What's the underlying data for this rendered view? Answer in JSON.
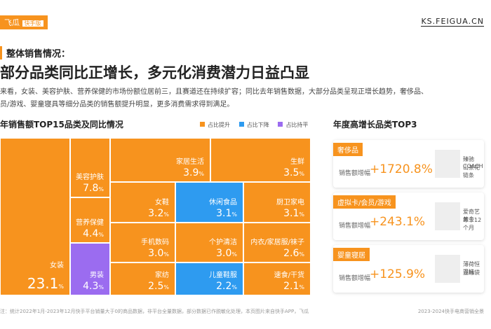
{
  "header": {
    "logo": "飞瓜",
    "badge": "快手版",
    "site": "KS.FEIGUA.CN"
  },
  "section": "整体销售情况：",
  "headline": "部分品类同比正增长，多元化消费潜力日益凸显",
  "paragraph": [
    "来看，女装、美容护肤、营养保健的市场份额位居前三，且赛道还在持续扩容；同比去年销售数据，大部分品类呈现正增长趋势，奢侈品、",
    "员/游戏、婴童寝具等细分品类的销售额提升明显，更多消费需求得到满足。"
  ],
  "treemap": {
    "title": "年销售额TOP15品类及同比情况",
    "legend": [
      "占比提升",
      "占比下降",
      "占比持平"
    ],
    "cells": [
      {
        "name": "女装",
        "value": "23.1",
        "unit": "%"
      },
      {
        "name": "美容护肤",
        "value": "7.8",
        "unit": "%"
      },
      {
        "name": "营养保健",
        "value": "4.4",
        "unit": "%"
      },
      {
        "name": "男装",
        "value": "4.3",
        "unit": "%"
      },
      {
        "name": "家居生活",
        "value": "3.9",
        "unit": "%"
      },
      {
        "name": "生鲜",
        "value": "3.5",
        "unit": "%"
      },
      {
        "name": "女鞋",
        "value": "3.2",
        "unit": "%"
      },
      {
        "name": "休闲食品",
        "value": "3.1",
        "unit": "%"
      },
      {
        "name": "厨卫家电",
        "value": "3.1",
        "unit": "%"
      },
      {
        "name": "手机数码",
        "value": "3.0",
        "unit": "%"
      },
      {
        "name": "个护清洁",
        "value": "3.0",
        "unit": "%"
      },
      {
        "name": "内衣/家居服/袜子",
        "value": "2.6",
        "unit": "%"
      },
      {
        "name": "家纺",
        "value": "2.5",
        "unit": "%"
      },
      {
        "name": "儿童鞋服",
        "value": "2.2",
        "unit": "%"
      },
      {
        "name": "速食/干货",
        "value": "2.1",
        "unit": "%"
      }
    ]
  },
  "top3": {
    "title": "年度高增长品类TOP3",
    "items": [
      {
        "tag": "奢侈品",
        "label": "销售额增幅",
        "value": "+1720.8%",
        "product": [
          "臻驰COACH",
          "山茶花链条"
        ]
      },
      {
        "tag": "虚拟卡/会员/游戏",
        "label": "销售额增幅",
        "value": "+243.1%",
        "product": [
          "爱奇艺黄金",
          "年卡12个月"
        ]
      },
      {
        "tag": "婴童寝居",
        "label": "销售额增幅",
        "value": "+125.9%",
        "product": [
          "薄荷恒温抗",
          "豆睡袋"
        ]
      }
    ]
  },
  "footer": {
    "note": "注：统计2022年1月-2023年12月快手平台销量大于0的商品数据，非平台全量数据，部分数据已作脱敏化处理，本页图片来自快手APP，飞瓜",
    "source": "2023-2024快手电商营销全景"
  }
}
